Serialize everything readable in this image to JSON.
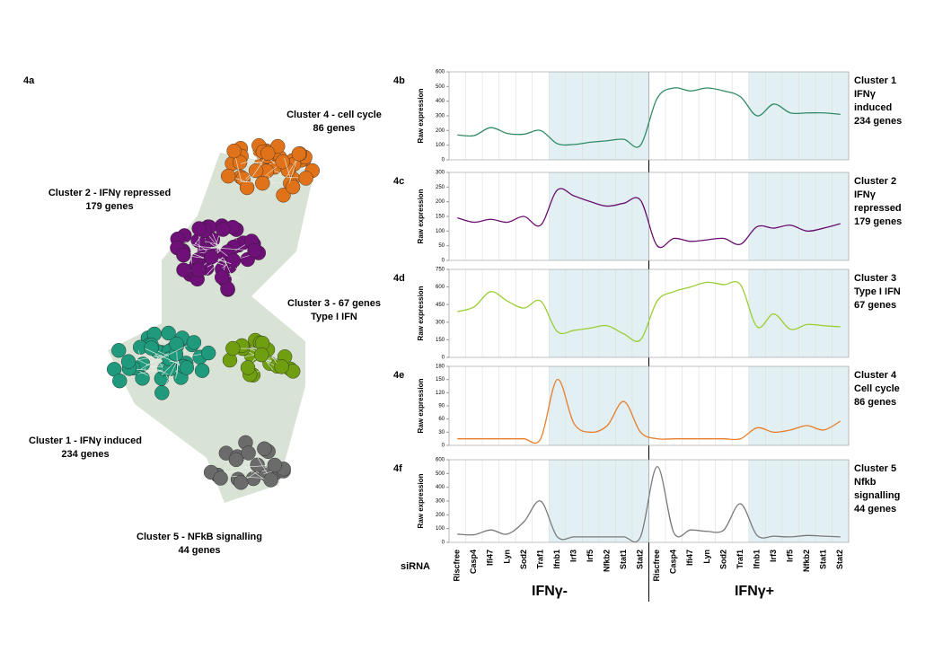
{
  "network": {
    "label": "4a",
    "clusters": [
      {
        "name": "Cluster 4 - cell cycle",
        "genes": "86 genes"
      },
      {
        "name": "Cluster 2 - IFNγ repressed",
        "genes": "179 genes"
      },
      {
        "name": "Cluster 3 - 67 genes",
        "genes": "Type I IFN"
      },
      {
        "name": "Cluster 1 - IFNγ induced",
        "genes": "234 genes"
      },
      {
        "name": "Cluster 5 - NFkB signalling",
        "genes": "44 genes"
      }
    ]
  },
  "x_axis": {
    "label": "siRNA",
    "groups": [
      "IFNγ-",
      "IFNγ+"
    ],
    "categories": [
      "Riscfree",
      "Casp4",
      "Ifi47",
      "Lyn",
      "Sod2",
      "Traf1",
      "Ifnb1",
      "Irf3",
      "Irf5",
      "Nfkb2",
      "Stat1",
      "Stat2",
      "Riscfree",
      "Casp4",
      "Ifi47",
      "Lyn",
      "Sod2",
      "Traf1",
      "Ifnb1",
      "Irf3",
      "Irf5",
      "Nfkb2",
      "Stat1",
      "Stat2"
    ]
  },
  "chart_data": [
    {
      "type": "line",
      "panel": "4b",
      "y_label": "Raw expression",
      "annotation": [
        "Cluster 1",
        "IFNγ",
        "induced",
        "234 genes"
      ],
      "color": "#2e8b64",
      "ylim": [
        0,
        600
      ],
      "yticks": [
        0,
        100,
        200,
        300,
        400,
        500,
        600
      ],
      "values": [
        170,
        165,
        220,
        180,
        175,
        200,
        110,
        105,
        120,
        130,
        140,
        100,
        420,
        490,
        470,
        490,
        470,
        430,
        300,
        380,
        320,
        320,
        320,
        310
      ]
    },
    {
      "type": "line",
      "panel": "4c",
      "y_label": "Raw expression",
      "annotation": [
        "Cluster 2",
        "IFNγ",
        "repressed",
        "179 genes"
      ],
      "color": "#6a0f6e",
      "ylim": [
        0,
        300
      ],
      "yticks": [
        0,
        50,
        100,
        150,
        200,
        250,
        300
      ],
      "values": [
        145,
        130,
        140,
        130,
        150,
        120,
        240,
        220,
        200,
        185,
        195,
        205,
        50,
        75,
        65,
        70,
        75,
        55,
        115,
        110,
        120,
        100,
        110,
        125
      ]
    },
    {
      "type": "line",
      "panel": "4d",
      "y_label": "Raw expression",
      "annotation": [
        "Cluster 3",
        "Type I IFN",
        "67 genes"
      ],
      "color": "#9acd32",
      "ylim": [
        0,
        750
      ],
      "yticks": [
        0,
        150,
        300,
        450,
        600,
        750
      ],
      "values": [
        390,
        430,
        560,
        480,
        420,
        480,
        220,
        230,
        250,
        270,
        200,
        150,
        480,
        560,
        600,
        640,
        620,
        620,
        260,
        370,
        240,
        280,
        270,
        260
      ]
    },
    {
      "type": "line",
      "panel": "4e",
      "y_label": "Raw expression",
      "annotation": [
        "Cluster 4",
        "Cell cycle",
        "86 genes"
      ],
      "color": "#e87d2a",
      "ylim": [
        0,
        180
      ],
      "yticks": [
        0,
        30,
        60,
        90,
        120,
        150,
        180
      ],
      "values": [
        15,
        15,
        15,
        15,
        15,
        15,
        150,
        50,
        30,
        45,
        100,
        30,
        15,
        15,
        15,
        15,
        15,
        15,
        40,
        30,
        35,
        45,
        35,
        55
      ]
    },
    {
      "type": "line",
      "panel": "4f",
      "y_label": "Raw expression",
      "annotation": [
        "Cluster 5",
        "Nfkb",
        "signalling",
        "44 genes"
      ],
      "color": "#7a7a7a",
      "ylim": [
        0,
        600
      ],
      "yticks": [
        0,
        100,
        200,
        300,
        400,
        500,
        600
      ],
      "values": [
        60,
        55,
        90,
        60,
        150,
        300,
        40,
        40,
        40,
        40,
        40,
        40,
        550,
        70,
        90,
        80,
        90,
        280,
        50,
        45,
        40,
        50,
        45,
        40
      ]
    }
  ]
}
